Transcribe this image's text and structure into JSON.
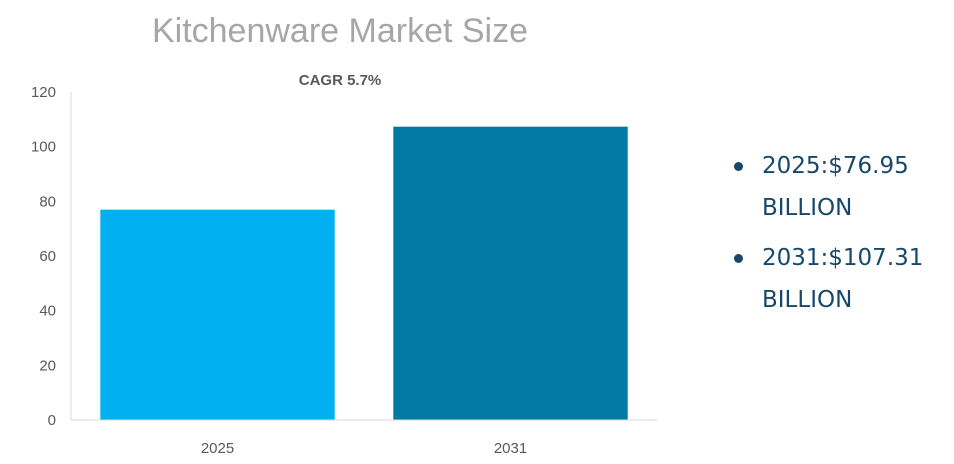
{
  "chart_data": {
    "type": "bar",
    "title": "Kitchenware Market Size",
    "subtitle": "CAGR 5.7%",
    "categories": [
      "2025",
      "2031"
    ],
    "values": [
      76.95,
      107.31
    ],
    "colors": [
      "#00b0f0",
      "#0079a5"
    ],
    "ylim": [
      0,
      120
    ],
    "yticks": [
      0,
      20,
      40,
      60,
      80,
      100,
      120
    ],
    "grid": false,
    "xlabel": "",
    "ylabel": ""
  },
  "legend_notes": [
    {
      "text": "2025:$76.95 BILLION"
    },
    {
      "text": "2031:$107.31 BILLION"
    }
  ]
}
